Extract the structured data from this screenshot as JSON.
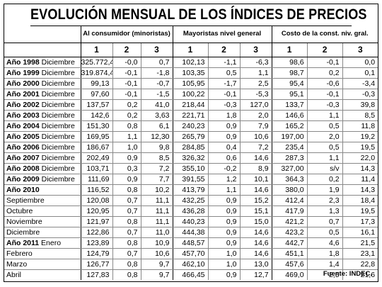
{
  "title": "EVOLUCIÓN MENSUAL DE LOS ÍNDICES DE PRECIOS",
  "groups": [
    "Al consumidor (minoristas)",
    "Mayoristas nivel general",
    "Costo de la const. niv. gral."
  ],
  "subheaders": [
    "1",
    "2",
    "3",
    "1",
    "2",
    "3",
    "1",
    "2",
    "3"
  ],
  "rows": [
    {
      "year": "Año 1998",
      "month": "Diciembre",
      "v": [
        "325.772,4",
        "-0,0",
        "0,7",
        "102,13",
        "-1,1",
        "-6,3",
        "98,6",
        "-0,1",
        "0,0"
      ]
    },
    {
      "year": "Año 1999",
      "month": "Diciembre",
      "v": [
        "319.874,4",
        "-0,1",
        "-1,8",
        "103,35",
        "0,5",
        "1,1",
        "98,7",
        "0,2",
        "0,1"
      ]
    },
    {
      "year": "Año 2000",
      "month": "Diciembre",
      "v": [
        "99,13",
        "-0,1",
        "-0,7",
        "105,95",
        "-1,7",
        "2,5",
        "95,4",
        "-0,6",
        "-3,4"
      ]
    },
    {
      "year": "Año 2001",
      "month": "Diciembre",
      "v": [
        "97,60",
        "-0,1",
        "-1,5",
        "100,22",
        "-0,1",
        "-5,3",
        "95,1",
        "-0,1",
        "-0,3"
      ]
    },
    {
      "year": "Año 2002",
      "month": "Diciembre",
      "v": [
        "137,57",
        "0,2",
        "41,0",
        "218,44",
        "-0,3",
        "127,0",
        "133,7",
        "-0,3",
        "39,8"
      ]
    },
    {
      "year": "Año 2003",
      "month": "Diciembre",
      "v": [
        "142,6",
        "0,2",
        "3,63",
        "221,71",
        "1,8",
        "2,0",
        "146,6",
        "1,1",
        "8,5"
      ]
    },
    {
      "year": "Año 2004",
      "month": "Diciembre",
      "v": [
        "151,30",
        "0,8",
        "6,1",
        "240,23",
        "0,9",
        "7,9",
        "165,2",
        "0,5",
        "11,8"
      ]
    },
    {
      "year": "Año 2005",
      "month": "Diciembre",
      "v": [
        "169,95",
        "1,1",
        "12,30",
        "265,79",
        "0,9",
        "10,6",
        "197,00",
        "2,0",
        "19,2"
      ]
    },
    {
      "year": "Año 2006",
      "month": "Diciembre",
      "v": [
        "186,67",
        "1,0",
        "9,8",
        "284,85",
        "0,4",
        "7,2",
        "235,4",
        "0,5",
        "19,5"
      ]
    },
    {
      "year": "Año 2007",
      "month": "Diciembre",
      "v": [
        "202,49",
        "0,9",
        "8,5",
        "326,32",
        "0,6",
        "14,6",
        "287,3",
        "1,1",
        "22,0"
      ]
    },
    {
      "year": "Año 2008",
      "month": "Diciembre",
      "v": [
        "103,71",
        "0,3",
        "7,2",
        "355,10",
        "-0,2",
        "8,9",
        "327,00",
        "s/v",
        "14,3"
      ]
    },
    {
      "year": "Año 2009",
      "month": "Diciembre",
      "v": [
        "111,69",
        "0,9",
        "7,7",
        "391,55",
        "1,2",
        "10,1",
        "364,3",
        "0,2",
        "11,4"
      ]
    },
    {
      "year": "Año 2010",
      "month": "",
      "v": [
        "116,52",
        "0,8",
        "10,2",
        "413,79",
        "1,1",
        "14,6",
        "380,0",
        "1,9",
        "14,3"
      ]
    },
    {
      "year": "",
      "month": "Septiembre",
      "v": [
        "120,08",
        "0,7",
        "11,1",
        "432,25",
        "0,9",
        "15,2",
        "412,4",
        "2,3",
        "18,4"
      ]
    },
    {
      "year": "",
      "month": "Octubre",
      "v": [
        "120,95",
        "0,7",
        "11,1",
        "436,28",
        "0,9",
        "15,1",
        "417,9",
        "1,3",
        "19,5"
      ]
    },
    {
      "year": "",
      "month": "Noviembre",
      "v": [
        "121,97",
        "0,8",
        "11,1",
        "440,23",
        "0,9",
        "15,0",
        "421,2",
        "0,7",
        "17,3"
      ]
    },
    {
      "year": "",
      "month": "Diciembre",
      "v": [
        "122,86",
        "0,7",
        "11,0",
        "444,38",
        "0,9",
        "14,6",
        "423,2",
        "0,5",
        "16,1"
      ]
    },
    {
      "year": "Año 2011",
      "month": "Enero",
      "v": [
        "123,89",
        "0,8",
        "10,9",
        "448,57",
        "0,9",
        "14,6",
        "442,7",
        "4,6",
        "21,5"
      ]
    },
    {
      "year": "",
      "month": "Febrero",
      "v": [
        "124,79",
        "0,7",
        "10,6",
        "457,70",
        "1,0",
        "14,6",
        "451,1",
        "1,8",
        "23,1"
      ]
    },
    {
      "year": "",
      "month": "Marzo",
      "v": [
        "126,77",
        "0,8",
        "9,7",
        "462,10",
        "1,0",
        "13,0",
        "457,6",
        "1,4",
        "22,8"
      ]
    },
    {
      "year": "",
      "month": "Abril",
      "v": [
        "127,83",
        "0,8",
        "9,7",
        "466,45",
        "0,9",
        "12,7",
        "469,0",
        "2,5",
        "21,6"
      ]
    }
  ],
  "source": "Fuente: INDEC."
}
